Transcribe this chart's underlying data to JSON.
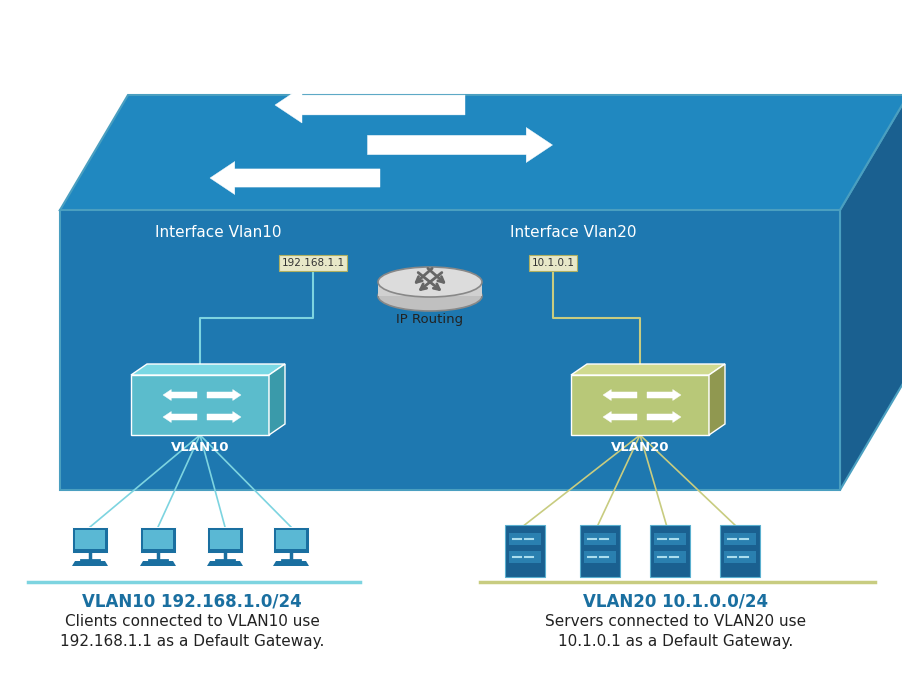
{
  "bg_color": "#ffffff",
  "box_front_color": "#1e78b0",
  "box_top_color": "#2088c0",
  "box_right_color": "#1a6090",
  "box_edge_color": "#4a9fc0",
  "vlan10_face": "#5bbccc",
  "vlan10_side": "#3a9aaa",
  "vlan10_top": "#7ad8e4",
  "vlan20_face": "#b8c878",
  "vlan20_side": "#909850",
  "vlan20_top": "#d0da90",
  "router_color": "#d8d8d8",
  "router_edge": "#999999",
  "router_arrow_color": "#666666",
  "ip_label_bg": "#e8e8c8",
  "ip_label_edge": "#b0b060",
  "line_color_vlan10": "#7dd4e0",
  "line_color_vlan20": "#c8cc80",
  "text_white": "#ffffff",
  "text_dark": "#222222",
  "text_blue": "#1a6fa0",
  "title_vlan10": "VLAN10 192.168.1.0/24",
  "title_vlan20": "VLAN20 10.1.0.0/24",
  "desc_vlan10_line1": "Clients connected to VLAN10 use",
  "desc_vlan10_line2": "192.168.1.1 as a Default Gateway.",
  "desc_vlan20_line1": "Servers connected to VLAN20 use",
  "desc_vlan20_line2": "10.1.0.1 as a Default Gateway.",
  "label_if_vlan10": "Interface Vlan10",
  "label_if_vlan20": "Interface Vlan20",
  "label_ip_vlan10": "192.168.1.1",
  "label_ip_vlan20": "10.1.0.1",
  "label_router": "IP Routing",
  "label_vlan10": "VLAN10",
  "label_vlan20": "VLAN20",
  "sep_color_vlan10": "#7dd4e0",
  "sep_color_vlan20": "#c8cc80",
  "computer_color": "#1a6fa0",
  "server_color": "#1a6090",
  "arrow_params": [
    [
      510,
      65,
      "right",
      200,
      38
    ],
    [
      370,
      105,
      "left",
      190,
      36
    ],
    [
      460,
      145,
      "right",
      185,
      35
    ],
    [
      295,
      178,
      "left",
      170,
      33
    ]
  ]
}
